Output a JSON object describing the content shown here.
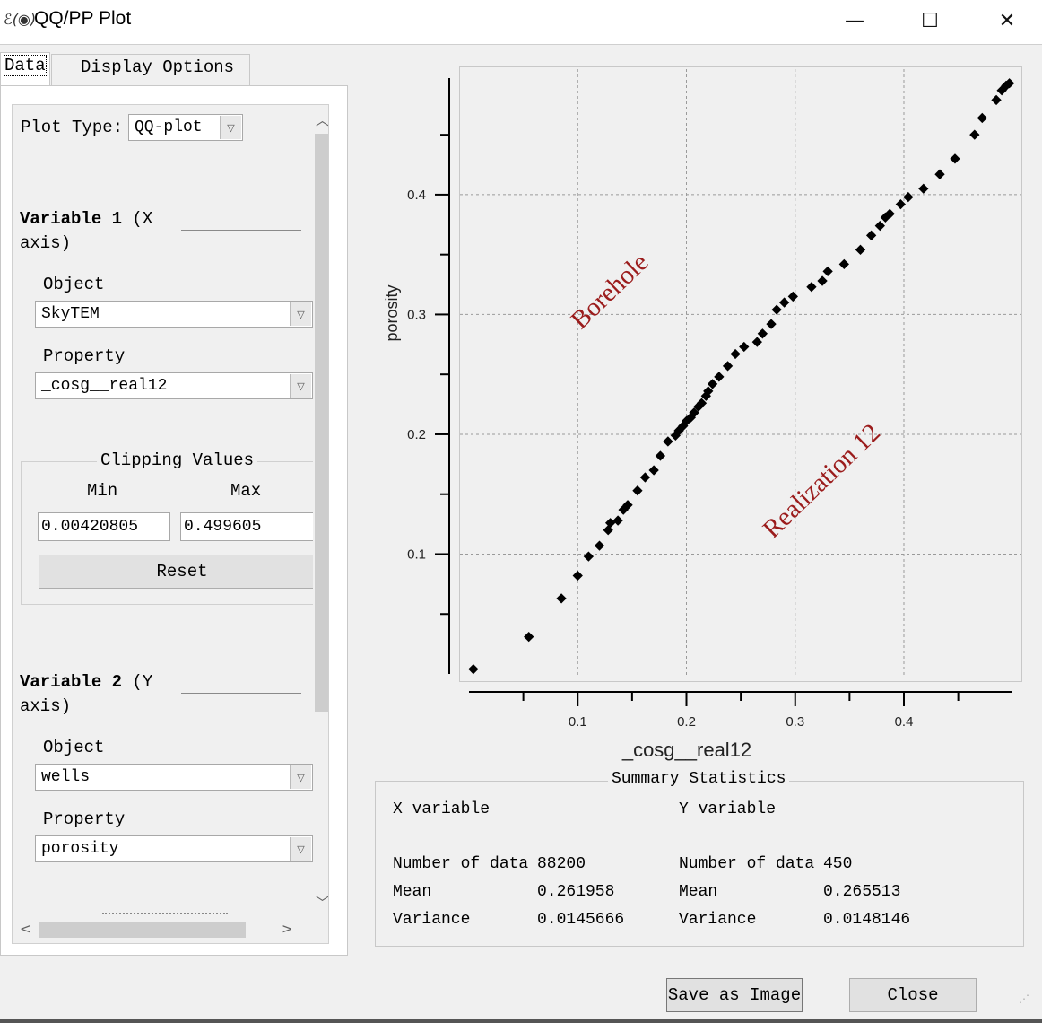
{
  "window": {
    "icon_text": "ℰ(◉)",
    "title": "QQ/PP Plot",
    "minimize_glyph": "—",
    "maximize_glyph": "☐",
    "close_glyph": "✕"
  },
  "tabs": [
    {
      "label": "Data",
      "active": true
    },
    {
      "label": "Display Options",
      "active": false
    }
  ],
  "panel": {
    "plot_type_label": "Plot Type:",
    "plot_type_value": "QQ-plot",
    "var1": {
      "heading_bold": "Variable 1",
      "heading_rest": " (X",
      "heading_line2": "axis)",
      "object_label": "Object",
      "object_value": "SkyTEM",
      "property_label": "Property",
      "property_value": "_cosg__real12"
    },
    "clipping": {
      "title": "Clipping Values",
      "min_label": "Min",
      "max_label": "Max",
      "min_value": "0.00420805",
      "max_value": "0.499605",
      "reset_label": "Reset"
    },
    "var2": {
      "heading_bold": "Variable 2",
      "heading_rest": " (Y",
      "heading_line2": "axis)",
      "object_label": "Object",
      "object_value": "wells",
      "property_label": "Property",
      "property_value": "porosity"
    }
  },
  "chart_data": {
    "type": "scatter",
    "xlabel": "_cosg__real12",
    "ylabel": "porosity",
    "xlim": [
      0.0,
      0.4998
    ],
    "ylim": [
      0.0,
      0.4973
    ],
    "xticks": [
      "0.1",
      "0.2",
      "0.3",
      "0.4"
    ],
    "yticks": [
      "0.1",
      "0.2",
      "0.3",
      "0.4"
    ],
    "grid": true,
    "annotations": [
      {
        "text": "Borehole",
        "color": "#9b1c1c"
      },
      {
        "text": "Realization 12",
        "color": "#9b1c1c"
      }
    ],
    "points": [
      [
        0.004,
        0.004
      ],
      [
        0.055,
        0.031
      ],
      [
        0.085,
        0.063
      ],
      [
        0.1,
        0.082
      ],
      [
        0.11,
        0.098
      ],
      [
        0.12,
        0.107
      ],
      [
        0.128,
        0.12
      ],
      [
        0.13,
        0.126
      ],
      [
        0.137,
        0.128
      ],
      [
        0.142,
        0.137
      ],
      [
        0.146,
        0.141
      ],
      [
        0.155,
        0.153
      ],
      [
        0.162,
        0.164
      ],
      [
        0.17,
        0.17
      ],
      [
        0.176,
        0.182
      ],
      [
        0.183,
        0.194
      ],
      [
        0.19,
        0.199
      ],
      [
        0.193,
        0.203
      ],
      [
        0.197,
        0.207
      ],
      [
        0.2,
        0.211
      ],
      [
        0.204,
        0.214
      ],
      [
        0.207,
        0.218
      ],
      [
        0.211,
        0.223
      ],
      [
        0.214,
        0.226
      ],
      [
        0.218,
        0.232
      ],
      [
        0.22,
        0.236
      ],
      [
        0.224,
        0.242
      ],
      [
        0.23,
        0.248
      ],
      [
        0.238,
        0.257
      ],
      [
        0.245,
        0.267
      ],
      [
        0.253,
        0.273
      ],
      [
        0.265,
        0.277
      ],
      [
        0.27,
        0.284
      ],
      [
        0.278,
        0.292
      ],
      [
        0.283,
        0.304
      ],
      [
        0.29,
        0.31
      ],
      [
        0.298,
        0.315
      ],
      [
        0.315,
        0.323
      ],
      [
        0.325,
        0.328
      ],
      [
        0.33,
        0.336
      ],
      [
        0.345,
        0.342
      ],
      [
        0.36,
        0.354
      ],
      [
        0.37,
        0.366
      ],
      [
        0.378,
        0.374
      ],
      [
        0.383,
        0.381
      ],
      [
        0.387,
        0.384
      ],
      [
        0.397,
        0.392
      ],
      [
        0.404,
        0.398
      ],
      [
        0.418,
        0.405
      ],
      [
        0.433,
        0.417
      ],
      [
        0.447,
        0.43
      ],
      [
        0.465,
        0.45
      ],
      [
        0.472,
        0.464
      ],
      [
        0.485,
        0.479
      ],
      [
        0.49,
        0.487
      ],
      [
        0.494,
        0.491
      ],
      [
        0.497,
        0.493
      ]
    ]
  },
  "stats": {
    "title": "Summary Statistics",
    "x": {
      "header": "X variable",
      "n_label": "Number of data",
      "n_value": "88200",
      "mean_label": "Mean",
      "mean_value": "0.261958",
      "var_label": "Variance",
      "var_value": "0.0145666"
    },
    "y": {
      "header": "Y variable",
      "n_label": "Number of data",
      "n_value": "450",
      "mean_label": "Mean",
      "mean_value": "0.265513",
      "var_label": "Variance",
      "var_value": "0.0148146"
    }
  },
  "buttons": {
    "save_image": "Save as Image",
    "close": "Close"
  },
  "icons": {
    "combo_arrow": "chevron-down-icon",
    "scroll_up": "chevron-up-icon",
    "scroll_down": "chevron-down-icon",
    "scroll_left": "chevron-left-icon",
    "scroll_right": "chevron-right-icon"
  }
}
